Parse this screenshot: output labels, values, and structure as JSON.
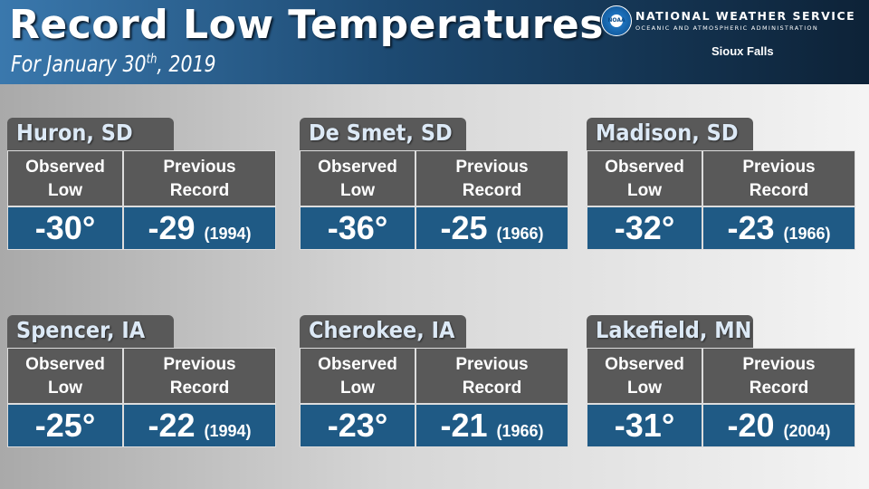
{
  "header": {
    "title": "Record Low Temperatures",
    "subtitle": [
      "For January 30",
      "th",
      ", 2019"
    ],
    "logo": "NOAA",
    "agency": "NATIONAL WEATHER SERVICE",
    "agency_sub": "OCEANIC AND ATMOSPHERIC ADMINISTRATION",
    "office": "Sioux Falls"
  },
  "cards": [
    {
      "location": "Huron, SD",
      "observed_label": [
        "Observed",
        "Low"
      ],
      "previous_label": [
        "Previous",
        "Record"
      ],
      "observed": "-30°",
      "previous": "-29",
      "year": "(1994)"
    },
    {
      "location": "De Smet, SD",
      "observed_label": [
        "Observed",
        "Low"
      ],
      "previous_label": [
        "Previous",
        "Record"
      ],
      "observed": "-36°",
      "previous": "-25",
      "year": "(1966)"
    },
    {
      "location": "Madison, SD",
      "observed_label": [
        "Observed",
        "Low"
      ],
      "previous_label": [
        "Previous",
        "Record"
      ],
      "observed": "-32°",
      "previous": "-23",
      "year": "(1966)"
    },
    {
      "location": "Spencer, IA",
      "observed_label": [
        "Observed",
        "Low"
      ],
      "previous_label": [
        "Previous",
        "Record"
      ],
      "observed": "-25°",
      "previous": "-22",
      "year": "(1994)"
    },
    {
      "location": "Cherokee, IA",
      "observed_label": [
        "Observed",
        "Low"
      ],
      "previous_label": [
        "Previous",
        "Record"
      ],
      "observed": "-23°",
      "previous": "-21",
      "year": "(1966)"
    },
    {
      "location": "Lakefield, MN",
      "observed_label": [
        "Observed",
        "Low"
      ],
      "previous_label": [
        "Previous",
        "Record"
      ],
      "observed": "-31°",
      "previous": "-20",
      "year": "(2004)"
    }
  ]
}
